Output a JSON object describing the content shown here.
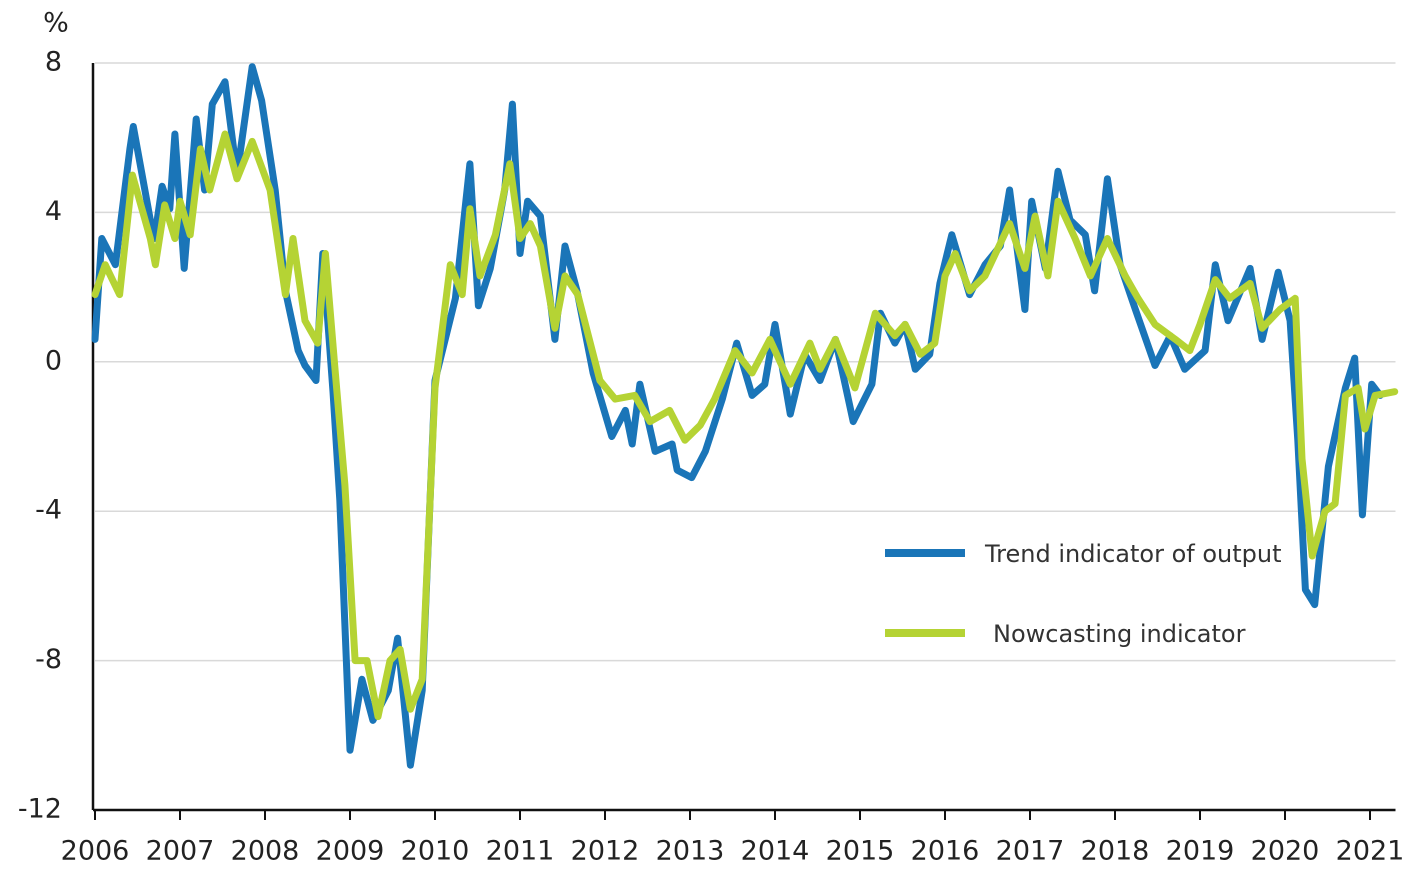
{
  "chart_data": {
    "type": "line",
    "y_unit": "%",
    "xlim": [
      2006,
      2021.3
    ],
    "xticks": [
      2006,
      2007,
      2008,
      2009,
      2010,
      2011,
      2012,
      2013,
      2014,
      2015,
      2016,
      2017,
      2018,
      2019,
      2020,
      2021
    ],
    "ylim": [
      -12,
      8
    ],
    "yticks": [
      -12,
      -8,
      -4,
      0,
      4,
      8
    ],
    "grid": true,
    "legend": "center right",
    "series": [
      {
        "name": "Trend indicator of output",
        "color": "#1a75b8",
        "x": [
          2006.0,
          2006.08,
          2006.24,
          2006.41,
          2006.45,
          2006.65,
          2006.7,
          2006.79,
          2006.88,
          2006.94,
          2007.05,
          2007.19,
          2007.29,
          2007.38,
          2007.53,
          2007.67,
          2007.85,
          2007.96,
          2008.12,
          2008.24,
          2008.39,
          2008.47,
          2008.6,
          2008.68,
          2008.8,
          2008.88,
          2009.0,
          2009.14,
          2009.27,
          2009.45,
          2009.56,
          2009.71,
          2009.85,
          2010.0,
          2010.24,
          2010.41,
          2010.51,
          2010.65,
          2010.82,
          2010.91,
          2011.0,
          2011.09,
          2011.24,
          2011.41,
          2011.53,
          2011.67,
          2011.86,
          2012.08,
          2012.24,
          2012.32,
          2012.41,
          2012.59,
          2012.79,
          2012.85,
          2013.02,
          2013.18,
          2013.38,
          2013.55,
          2013.73,
          2013.88,
          2014.0,
          2014.18,
          2014.35,
          2014.53,
          2014.71,
          2014.92,
          2015.14,
          2015.24,
          2015.41,
          2015.53,
          2015.65,
          2015.82,
          2015.94,
          2016.08,
          2016.29,
          2016.47,
          2016.65,
          2016.76,
          2016.94,
          2017.02,
          2017.18,
          2017.33,
          2017.47,
          2017.65,
          2017.76,
          2017.91,
          2018.06,
          2018.24,
          2018.47,
          2018.65,
          2018.82,
          2019.06,
          2019.18,
          2019.33,
          2019.59,
          2019.73,
          2019.92,
          2020.06,
          2020.15,
          2020.24,
          2020.35,
          2020.51,
          2020.71,
          2020.82,
          2020.91,
          2021.02,
          2021.12
        ],
        "values": [
          0.6,
          3.3,
          2.6,
          5.7,
          6.3,
          3.8,
          3.3,
          4.7,
          4.1,
          6.1,
          2.5,
          6.5,
          4.6,
          6.9,
          7.5,
          5.0,
          7.9,
          7.0,
          4.6,
          1.9,
          0.3,
          -0.1,
          -0.5,
          2.9,
          -0.8,
          -3.7,
          -10.4,
          -8.5,
          -9.6,
          -8.8,
          -7.4,
          -10.8,
          -8.8,
          -0.5,
          1.7,
          5.3,
          1.5,
          2.5,
          4.6,
          6.9,
          2.9,
          4.3,
          3.9,
          0.6,
          3.1,
          1.9,
          -0.3,
          -2.0,
          -1.3,
          -2.2,
          -0.6,
          -2.4,
          -2.2,
          -2.9,
          -3.1,
          -2.4,
          -1.0,
          0.5,
          -0.9,
          -0.6,
          1.0,
          -1.4,
          0.2,
          -0.5,
          0.6,
          -1.6,
          -0.6,
          1.3,
          0.5,
          1.0,
          -0.2,
          0.2,
          2.1,
          3.4,
          1.8,
          2.6,
          3.1,
          4.6,
          1.4,
          4.3,
          2.5,
          5.1,
          3.8,
          3.4,
          1.9,
          4.9,
          2.6,
          1.4,
          -0.1,
          0.7,
          -0.2,
          0.3,
          2.6,
          1.1,
          2.5,
          0.6,
          2.4,
          1.1,
          -2.1,
          -6.1,
          -6.5,
          -2.8,
          -0.7,
          0.1,
          -4.1,
          -0.6,
          -0.9
        ]
      },
      {
        "name": "Nowcasting indicator",
        "color": "#b5d334",
        "x": [
          2006.0,
          2006.12,
          2006.29,
          2006.44,
          2006.65,
          2006.71,
          2006.82,
          2006.94,
          2007.0,
          2007.12,
          2007.24,
          2007.35,
          2007.53,
          2007.67,
          2007.85,
          2008.06,
          2008.24,
          2008.33,
          2008.47,
          2008.62,
          2008.71,
          2008.82,
          2008.94,
          2009.06,
          2009.2,
          2009.33,
          2009.47,
          2009.59,
          2009.71,
          2009.85,
          2010.0,
          2010.18,
          2010.32,
          2010.41,
          2010.53,
          2010.71,
          2010.88,
          2011.0,
          2011.12,
          2011.24,
          2011.41,
          2011.53,
          2011.68,
          2011.94,
          2012.12,
          2012.35,
          2012.53,
          2012.76,
          2012.94,
          2013.12,
          2013.29,
          2013.53,
          2013.73,
          2013.94,
          2014.18,
          2014.41,
          2014.53,
          2014.71,
          2014.94,
          2015.18,
          2015.41,
          2015.53,
          2015.71,
          2015.88,
          2016.0,
          2016.12,
          2016.29,
          2016.47,
          2016.76,
          2016.94,
          2017.06,
          2017.21,
          2017.33,
          2017.53,
          2017.71,
          2017.91,
          2018.12,
          2018.27,
          2018.47,
          2018.71,
          2018.88,
          2019.0,
          2019.18,
          2019.35,
          2019.59,
          2019.73,
          2019.94,
          2020.12,
          2020.2,
          2020.32,
          2020.47,
          2020.59,
          2020.71,
          2020.86,
          2020.94,
          2021.06,
          2021.29
        ],
        "values": [
          1.8,
          2.6,
          1.8,
          5.0,
          3.3,
          2.6,
          4.2,
          3.3,
          4.3,
          3.4,
          5.7,
          4.6,
          6.1,
          4.9,
          5.9,
          4.6,
          1.8,
          3.3,
          1.1,
          0.5,
          2.9,
          -0.1,
          -3.3,
          -8.0,
          -8.0,
          -9.5,
          -8.0,
          -7.7,
          -9.3,
          -8.5,
          -0.7,
          2.6,
          1.8,
          4.1,
          2.3,
          3.4,
          5.3,
          3.3,
          3.7,
          3.1,
          0.9,
          2.3,
          1.8,
          -0.5,
          -1.0,
          -0.9,
          -1.6,
          -1.3,
          -2.1,
          -1.7,
          -1.0,
          0.3,
          -0.3,
          0.6,
          -0.6,
          0.5,
          -0.2,
          0.6,
          -0.7,
          1.3,
          0.7,
          1.0,
          0.2,
          0.5,
          2.3,
          2.9,
          1.9,
          2.3,
          3.7,
          2.5,
          3.9,
          2.3,
          4.3,
          3.3,
          2.3,
          3.3,
          2.3,
          1.7,
          1.0,
          0.6,
          0.3,
          1.0,
          2.2,
          1.7,
          2.1,
          0.9,
          1.4,
          1.7,
          -2.6,
          -5.2,
          -4.0,
          -3.8,
          -0.9,
          -0.7,
          -1.8,
          -0.9,
          -0.8
        ]
      }
    ]
  }
}
